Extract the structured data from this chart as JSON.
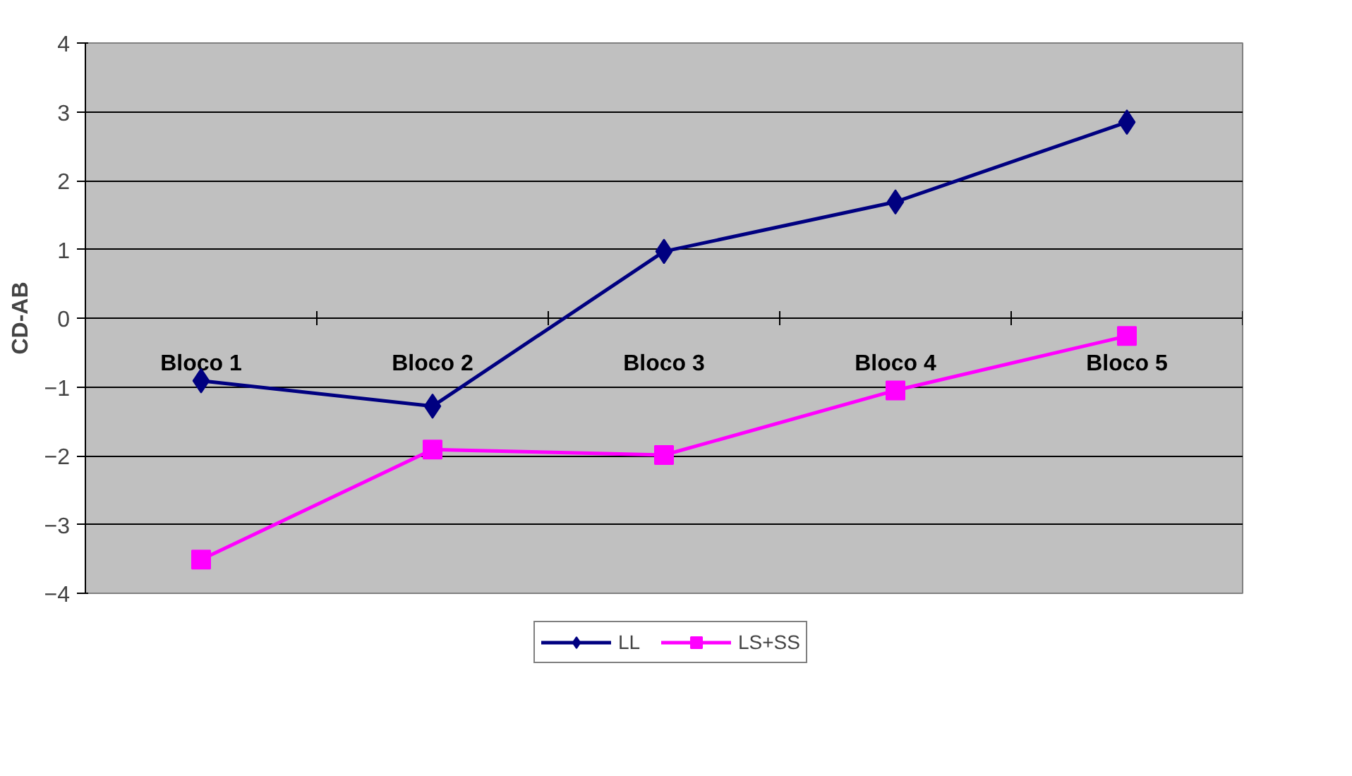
{
  "chart_data": {
    "type": "line",
    "ylabel": "CD-AB",
    "categories": [
      "Bloco 1",
      "Bloco 2",
      "Bloco 3",
      "Bloco 4",
      "Bloco 5"
    ],
    "series": [
      {
        "name": "LL",
        "color": "#000080",
        "marker": "diamond",
        "values": [
          -0.91,
          -1.28,
          0.97,
          1.69,
          2.85
        ]
      },
      {
        "name": "LS+SS",
        "color": "#ff00ff",
        "marker": "square",
        "values": [
          -3.51,
          -1.91,
          -1.99,
          -1.05,
          -0.26
        ]
      }
    ],
    "ylim": [
      -4,
      4
    ],
    "yticks": [
      -4,
      -3,
      -2,
      -1,
      0,
      1,
      2,
      3,
      4
    ],
    "grid": "y",
    "legend": "bottom",
    "line_style": "solid"
  }
}
